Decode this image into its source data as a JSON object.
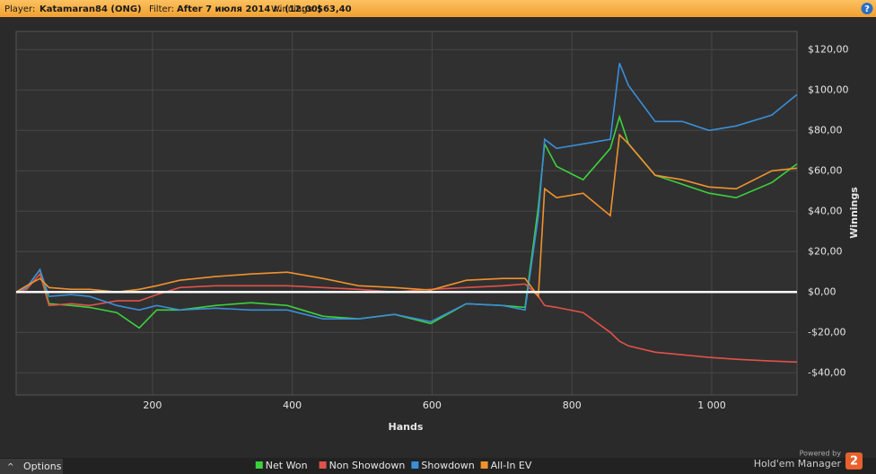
{
  "header": {
    "player_label": "Player:",
    "player": "Katamaran84 (ONG)",
    "filter_label": "Filter:",
    "filter": "After 7 июля 2014 г. (12:00)",
    "winnings_label": "Winnings:",
    "winnings": "$63,40",
    "help": "?"
  },
  "footer": {
    "options": "Options",
    "powered_by": "Powered by",
    "brand": "Hold'em Manager",
    "brand_badge": "2"
  },
  "chart_data": {
    "type": "line",
    "x_label": "Hands",
    "y_label": "Winnings",
    "x": [
      5,
      20,
      39,
      52,
      84,
      110,
      149,
      181,
      206,
      239,
      290,
      341,
      393,
      444,
      495,
      546,
      598,
      649,
      701,
      733,
      752,
      761,
      778,
      816,
      855,
      868,
      881,
      919,
      958,
      996,
      1035,
      1086,
      1122
    ],
    "series": [
      {
        "name": "Net Won",
        "color": "#3cd13c",
        "values": [
          0,
          2.2,
          11.1,
          -5.8,
          -6.7,
          -7.6,
          -10.2,
          -17.8,
          -8.9,
          -8.9,
          -6.7,
          -5.3,
          -6.7,
          -12.0,
          -13.3,
          -11.1,
          -15.6,
          -5.8,
          -6.7,
          -7.6,
          42.2,
          73.3,
          62.2,
          55.6,
          71.1,
          86.7,
          73.3,
          57.8,
          53.3,
          48.9,
          46.7,
          54.2,
          63.4
        ]
      },
      {
        "name": "Non Showdown",
        "color": "#e0524a",
        "values": [
          0,
          1.3,
          8.9,
          -6.7,
          -5.8,
          -6.7,
          -4.4,
          -4.4,
          -1.3,
          2.2,
          3.1,
          3.1,
          3.1,
          2.2,
          1.3,
          0,
          1.3,
          2.2,
          3.1,
          4.0,
          -2.2,
          -6.7,
          -7.6,
          -10.2,
          -20.0,
          -24.4,
          -26.7,
          -29.8,
          -31.1,
          -32.4,
          -33.3,
          -34.2,
          -34.7
        ]
      },
      {
        "name": "Showdown",
        "color": "#3a8ed8",
        "values": [
          0,
          2.2,
          11.1,
          -2.2,
          -1.3,
          -2.2,
          -6.7,
          -8.9,
          -6.7,
          -8.9,
          -8.0,
          -8.9,
          -8.9,
          -13.3,
          -13.3,
          -11.1,
          -14.7,
          -5.8,
          -6.7,
          -8.9,
          37.8,
          75.6,
          71.1,
          73.3,
          75.6,
          113.3,
          102.2,
          84.4,
          84.4,
          80.0,
          82.2,
          87.6,
          97.8
        ]
      },
      {
        "name": "All-In EV",
        "color": "#f0922e",
        "values": [
          0,
          3.1,
          6.7,
          2.2,
          1.3,
          1.3,
          0,
          1.3,
          3.1,
          5.8,
          7.6,
          8.9,
          9.8,
          6.7,
          3.1,
          2.2,
          0.9,
          5.8,
          6.7,
          6.7,
          -2.2,
          51.1,
          46.7,
          48.9,
          37.8,
          77.8,
          73.3,
          57.8,
          55.6,
          52.0,
          51.1,
          60.0,
          61.3
        ]
      }
    ],
    "xlim": [
      5,
      1122
    ],
    "xticks": [
      200,
      400,
      600,
      800,
      {
        "value": 1000,
        "label": "1 000"
      }
    ],
    "ylim": [
      -51,
      129
    ],
    "yticks": [
      {
        "value": -40,
        "label": "-$40,00"
      },
      {
        "value": -20,
        "label": "-$20,00"
      },
      {
        "value": 0,
        "label": "$0,00"
      },
      {
        "value": 20,
        "label": "$20,00"
      },
      {
        "value": 40,
        "label": "$40,00"
      },
      {
        "value": 60,
        "label": "$60,00"
      },
      {
        "value": 80,
        "label": "$80,00"
      },
      {
        "value": 100,
        "label": "$100,00"
      },
      {
        "value": 120,
        "label": "$120,00"
      }
    ],
    "grid": true,
    "legend": "bottom"
  }
}
